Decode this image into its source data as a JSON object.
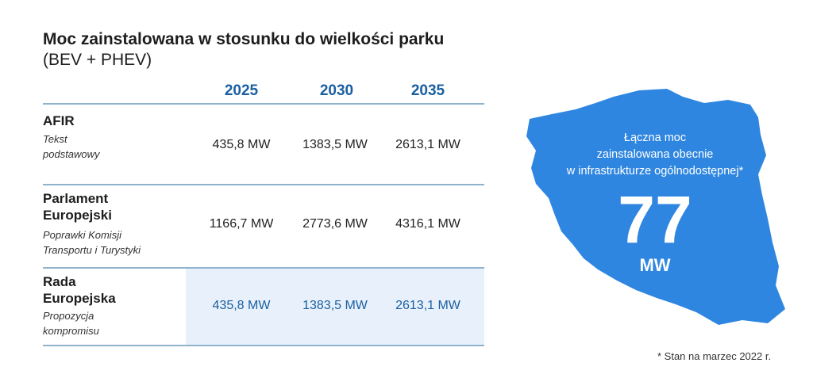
{
  "chart_data": {
    "type": "table",
    "title": "Moc zainstalowana w stosunku do wielkości parku",
    "subtitle": "(BEV + PHEV)",
    "columns": [
      "2025",
      "2030",
      "2035"
    ],
    "rows": [
      {
        "label": "AFIR",
        "note": [
          "Tekst",
          "podstawowy"
        ],
        "values": [
          "435,8 MW",
          "1383,5 MW",
          "2613,1 MW"
        ],
        "highlight": false
      },
      {
        "label": [
          "Parlament",
          "Europejski"
        ],
        "note": [
          "Poprawki Komisji",
          "Transportu i Turystyki"
        ],
        "values": [
          "1166,7 MW",
          "2773,6 MW",
          "4316,1 MW"
        ],
        "highlight": false
      },
      {
        "label": [
          "Rada",
          "Europejska"
        ],
        "note": [
          "Propozycja",
          "kompromisu"
        ],
        "values": [
          "435,8 MW",
          "1383,5 MW",
          "2613,1 MW"
        ],
        "highlight": true
      }
    ]
  },
  "map_panel": {
    "caption": [
      "Łączna moc",
      "zainstalowana obecnie",
      "w infrastrukturze ogólnodostępnej*"
    ],
    "value": "77",
    "unit": "MW",
    "color": "#2f86e0"
  },
  "footnote": "* Stan na marzec 2022 r."
}
